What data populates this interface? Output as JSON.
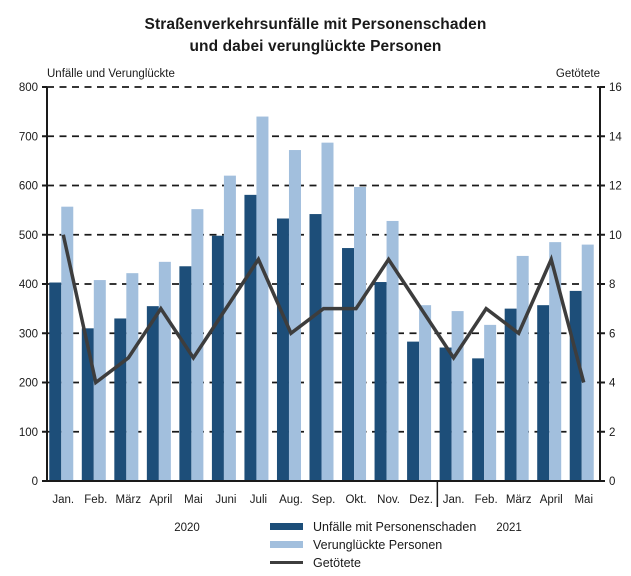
{
  "title": {
    "line1": "Straßenverkehrsunfälle mit Personenschaden",
    "line2": "und dabei verunglückte Personen"
  },
  "chart_data": {
    "type": "bar+line",
    "categories": [
      "Jan.",
      "Feb.",
      "März",
      "April",
      "Mai",
      "Juni",
      "Juli",
      "Aug.",
      "Sep.",
      "Okt.",
      "Nov.",
      "Dez.",
      "Jan.",
      "Feb.",
      "März",
      "April",
      "Mai"
    ],
    "series": [
      {
        "name": "Unfälle mit Personenschaden",
        "type": "bar",
        "axis": "left",
        "color": "#1d4e79",
        "values": [
          403,
          310,
          330,
          355,
          436,
          498,
          581,
          533,
          542,
          473,
          404,
          283,
          271,
          249,
          350,
          357,
          386
        ]
      },
      {
        "name": "Verunglückte Personen",
        "type": "bar",
        "axis": "left",
        "color": "#a2bfdd",
        "values": [
          557,
          408,
          422,
          445,
          552,
          620,
          740,
          672,
          687,
          597,
          528,
          357,
          345,
          317,
          457,
          485,
          480
        ]
      },
      {
        "name": "Getötete",
        "type": "line",
        "axis": "right",
        "color": "#3d3d3d",
        "values": [
          10,
          4,
          5,
          7,
          5,
          7,
          9,
          6,
          7,
          7,
          9,
          7,
          5,
          7,
          6,
          9,
          4
        ]
      }
    ],
    "left_axis": {
      "label": "Unfälle und Verunglückte",
      "min": 0,
      "max": 800,
      "tick_step": 100
    },
    "right_axis": {
      "label": "Getötete",
      "min": 0,
      "max": 16,
      "tick_step": 2
    },
    "year_groups": [
      {
        "label": "2020",
        "start_index": 0,
        "end_index": 11
      },
      {
        "label": "2021",
        "start_index": 12,
        "end_index": 16
      }
    ],
    "grid": "horizontal dashed",
    "legend_position": "bottom"
  },
  "legend": {
    "items": [
      {
        "label": "Unfälle mit Personenschaden",
        "type": "bar",
        "color": "#1d4e79"
      },
      {
        "label": "Verunglückte Personen",
        "type": "bar",
        "color": "#a2bfdd"
      },
      {
        "label": "Getötete",
        "type": "line",
        "color": "#3d3d3d"
      }
    ]
  },
  "colors": {
    "accidents_bar": "#1d4e79",
    "casualties_bar": "#a2bfdd",
    "killed_line": "#3d3d3d",
    "axis_ink": "#1a1a1a"
  }
}
